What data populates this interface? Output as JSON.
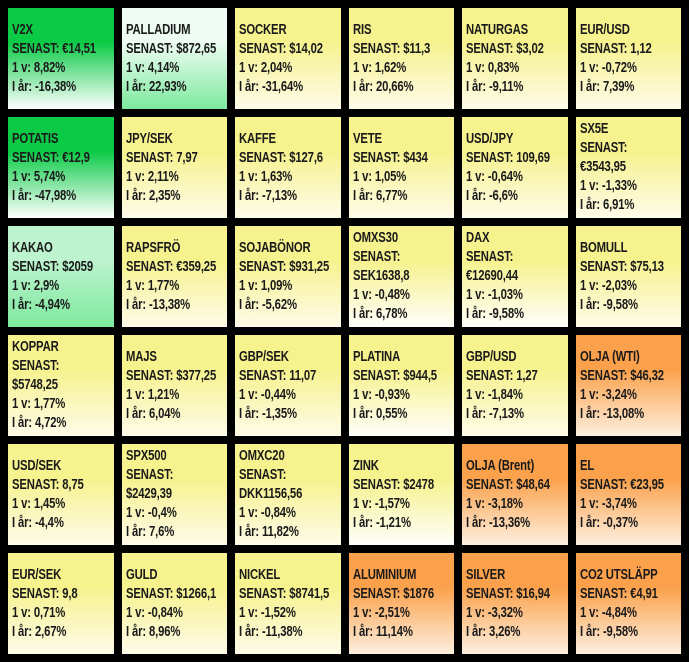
{
  "page": {
    "background": "#000000",
    "text_color": "#1a1a1a"
  },
  "labels": {
    "last": "SENAST:",
    "week": "1 v:",
    "year": "I år:"
  },
  "palette": {
    "green_strong": "#0bca46",
    "green_soft": "#7de99e",
    "mint_light": "#eefcf3",
    "mint": "#bdf3ce",
    "yellow": "#f6f28e",
    "yellow_fade": "#fefbe9",
    "orange": "#fba14b",
    "orange_fade": "#fcefdf",
    "white": "#ffffff"
  },
  "chart_data": {
    "type": "heatmap",
    "rows": 6,
    "cols": 6,
    "legend": "none",
    "description": "Market overview grid of commodities, FX and indices with last price (SENAST), 1 week change (1 v) and year-to-date change (I år). Cell color encodes weekly performance: green positive, yellow neutral, orange negative.",
    "tiles": [
      {
        "name": "V2X",
        "last": "€14,51",
        "week": "8,82%",
        "year": "-16,38%",
        "wrap": false,
        "bg_top": "#0bca46",
        "bg_bottom": "#ffffff"
      },
      {
        "name": "PALLADIUM",
        "last": "$872,65",
        "week": "4,14%",
        "year": "22,93%",
        "wrap": false,
        "bg_top": "#eefcf3",
        "bg_bottom": "#7de99e"
      },
      {
        "name": "SOCKER",
        "last": "$14,02",
        "week": "2,04%",
        "year": "-31,64%",
        "wrap": false,
        "bg_top": "#f6f28e",
        "bg_bottom": "#fefbe9"
      },
      {
        "name": "RIS",
        "last": "$11,3",
        "week": "1,62%",
        "year": "20,66%",
        "wrap": false,
        "bg_top": "#f6f28e",
        "bg_bottom": "#fefbe9"
      },
      {
        "name": "NATURGAS",
        "last": "$3,02",
        "week": "0,83%",
        "year": "-9,11%",
        "wrap": false,
        "bg_top": "#f6f28e",
        "bg_bottom": "#fefbe9"
      },
      {
        "name": "EUR/USD",
        "last": "1,12",
        "week": "-0,72%",
        "year": "7,39%",
        "wrap": false,
        "bg_top": "#f6f28e",
        "bg_bottom": "#fefbe9"
      },
      {
        "name": "POTATIS",
        "last": "€12,9",
        "week": "5,74%",
        "year": "-47,98%",
        "wrap": false,
        "bg_top": "#0bca46",
        "bg_bottom": "#ffffff"
      },
      {
        "name": "JPY/SEK",
        "last": "7,97",
        "week": "2,11%",
        "year": "2,35%",
        "wrap": false,
        "bg_top": "#f6f28e",
        "bg_bottom": "#fefbe9"
      },
      {
        "name": "KAFFE",
        "last": "$127,6",
        "week": "1,63%",
        "year": "-7,13%",
        "wrap": false,
        "bg_top": "#f6f28e",
        "bg_bottom": "#fefbe9"
      },
      {
        "name": "VETE",
        "last": "$434",
        "week": "1,05%",
        "year": "6,77%",
        "wrap": false,
        "bg_top": "#f6f28e",
        "bg_bottom": "#fefbe9"
      },
      {
        "name": "USD/JPY",
        "last": "109,69",
        "week": "-0,64%",
        "year": "-6,6%",
        "wrap": false,
        "bg_top": "#f6f28e",
        "bg_bottom": "#fefbe9"
      },
      {
        "name": "SX5E",
        "last": "€3543,95",
        "week": "-1,33%",
        "year": "6,91%",
        "wrap": true,
        "bg_top": "#f6f28e",
        "bg_bottom": "#fefbe9"
      },
      {
        "name": "KAKAO",
        "last": "$2059",
        "week": "2,9%",
        "year": "-4,94%",
        "wrap": false,
        "bg_top": "#bdf3ce",
        "bg_bottom": "#7de99e"
      },
      {
        "name": "RAPSFRÖ",
        "last": "€359,25",
        "week": "1,77%",
        "year": "-13,38%",
        "wrap": false,
        "bg_top": "#f6f28e",
        "bg_bottom": "#fefbe9"
      },
      {
        "name": "SOJABÖNOR",
        "last": "$931,25",
        "week": "1,09%",
        "year": "-5,62%",
        "wrap": false,
        "bg_top": "#f6f28e",
        "bg_bottom": "#fefbe9"
      },
      {
        "name": "OMXS30",
        "last": "SEK1638,8",
        "week": "-0,48%",
        "year": "6,78%",
        "wrap": true,
        "bg_top": "#f6f28e",
        "bg_bottom": "#fefefa"
      },
      {
        "name": "DAX",
        "last": "€12690,44",
        "week": "-1,03%",
        "year": "-9,58%",
        "wrap": true,
        "bg_top": "#f6f28e",
        "bg_bottom": "#fefefa"
      },
      {
        "name": "BOMULL",
        "last": "$75,13",
        "week": "-2,03%",
        "year": "-9,58%",
        "wrap": false,
        "bg_top": "#f6f28e",
        "bg_bottom": "#fefbe9"
      },
      {
        "name": "KOPPAR",
        "last": "$5748,25",
        "week": "1,77%",
        "year": "4,72%",
        "wrap": true,
        "bg_top": "#f6f28e",
        "bg_bottom": "#fefbe9"
      },
      {
        "name": "MAJS",
        "last": "$377,25",
        "week": "1,21%",
        "year": "6,04%",
        "wrap": false,
        "bg_top": "#f6f28e",
        "bg_bottom": "#fefbe9"
      },
      {
        "name": "GBP/SEK",
        "last": "11,07",
        "week": "-0,44%",
        "year": "-1,35%",
        "wrap": false,
        "bg_top": "#f6f28e",
        "bg_bottom": "#fefbe9"
      },
      {
        "name": "PLATINA",
        "last": "$944,5",
        "week": "-0,93%",
        "year": "0,55%",
        "wrap": false,
        "bg_top": "#f6f28e",
        "bg_bottom": "#fefefa"
      },
      {
        "name": "GBP/USD",
        "last": "1,27",
        "week": "-1,84%",
        "year": "-7,13%",
        "wrap": false,
        "bg_top": "#f6f28e",
        "bg_bottom": "#fefbe9"
      },
      {
        "name": "OLJA (WTI)",
        "last": "$46,32",
        "week": "-3,24%",
        "year": "-13,08%",
        "wrap": false,
        "bg_top": "#fba14b",
        "bg_bottom": "#fcefdf"
      },
      {
        "name": "USD/SEK",
        "last": "8,75",
        "week": "1,45%",
        "year": "-4,4%",
        "wrap": false,
        "bg_top": "#f6f28e",
        "bg_bottom": "#fefbe9"
      },
      {
        "name": "SPX500",
        "last": "$2429,39",
        "week": "-0,4%",
        "year": "7,6%",
        "wrap": true,
        "bg_top": "#f6f28e",
        "bg_bottom": "#fefbe9"
      },
      {
        "name": "OMXC20",
        "last": "DKK1156,56",
        "week": "-0,84%",
        "year": "11,82%",
        "wrap": true,
        "bg_top": "#f6f28e",
        "bg_bottom": "#fefbe9"
      },
      {
        "name": "ZINK",
        "last": "$2478",
        "week": "-1,57%",
        "year": "-1,21%",
        "wrap": false,
        "bg_top": "#f6f28e",
        "bg_bottom": "#fefefa"
      },
      {
        "name": "OLJA (Brent)",
        "last": "$48,64",
        "week": "-3,18%",
        "year": "-13,36%",
        "wrap": false,
        "bg_top": "#fba14b",
        "bg_bottom": "#fcefdf"
      },
      {
        "name": "EL",
        "last": "€23,95",
        "week": "-3,74%",
        "year": "-0,37%",
        "wrap": false,
        "bg_top": "#fba14b",
        "bg_bottom": "#fcefdf"
      },
      {
        "name": "EUR/SEK",
        "last": "9,8",
        "week": "0,71%",
        "year": "2,67%",
        "wrap": false,
        "bg_top": "#f6f28e",
        "bg_bottom": "#fefbe9"
      },
      {
        "name": "GULD",
        "last": "$1266,1",
        "week": "-0,84%",
        "year": "8,96%",
        "wrap": false,
        "bg_top": "#f6f28e",
        "bg_bottom": "#fefbe9"
      },
      {
        "name": "NICKEL",
        "last": "$8741,5",
        "week": "-1,52%",
        "year": "-11,38%",
        "wrap": false,
        "bg_top": "#f6f28e",
        "bg_bottom": "#fefbe9"
      },
      {
        "name": "ALUMINIUM",
        "last": "$1876",
        "week": "-2,51%",
        "year": "11,14%",
        "wrap": false,
        "bg_top": "#fba14b",
        "bg_bottom": "#fcefdf"
      },
      {
        "name": "SILVER",
        "last": "$16,94",
        "week": "-3,32%",
        "year": "3,26%",
        "wrap": false,
        "bg_top": "#fba14b",
        "bg_bottom": "#fcefdf"
      },
      {
        "name": "CO2 UTSLÄPP",
        "last": "€4,91",
        "week": "-4,84%",
        "year": "-9,58%",
        "wrap": false,
        "bg_top": "#fba14b",
        "bg_bottom": "#fcefdf"
      }
    ]
  }
}
